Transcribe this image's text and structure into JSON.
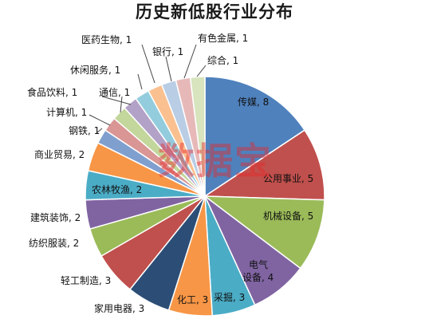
{
  "chart_data": {
    "type": "pie",
    "title": "历史新低股行业分布",
    "slices": [
      {
        "label": "传媒",
        "value": 8,
        "color": "#4F81BD"
      },
      {
        "label": "公用事业",
        "value": 5,
        "color": "#C0504D"
      },
      {
        "label": "机械设备",
        "value": 5,
        "color": "#9BBB59"
      },
      {
        "label": "电气设备",
        "value": 4,
        "color": "#8064A2"
      },
      {
        "label": "采掘",
        "value": 3,
        "color": "#4BACC6"
      },
      {
        "label": "化工",
        "value": 3,
        "color": "#F79646"
      },
      {
        "label": "家用电器",
        "value": 3,
        "color": "#2C4D75"
      },
      {
        "label": "轻工制造",
        "value": 3,
        "color": "#C0504D"
      },
      {
        "label": "纺织服装",
        "value": 2,
        "color": "#9BBB59"
      },
      {
        "label": "建筑装饰",
        "value": 2,
        "color": "#8064A2"
      },
      {
        "label": "农林牧渔",
        "value": 2,
        "color": "#4BACC6"
      },
      {
        "label": "商业贸易",
        "value": 2,
        "color": "#F79646"
      },
      {
        "label": "钢铁",
        "value": 1,
        "color": "#7F9FCF"
      },
      {
        "label": "计算机",
        "value": 1,
        "color": "#D99694"
      },
      {
        "label": "通信",
        "value": 1,
        "color": "#C3D69B"
      },
      {
        "label": "食品饮料",
        "value": 1,
        "color": "#B3A2C7"
      },
      {
        "label": "休闲服务",
        "value": 1,
        "color": "#93CDDD"
      },
      {
        "label": "医药生物",
        "value": 1,
        "color": "#FAC090"
      },
      {
        "label": "银行",
        "value": 1,
        "color": "#B9CDE5"
      },
      {
        "label": "有色金属",
        "value": 1,
        "color": "#E6B9B8"
      },
      {
        "label": "综合",
        "value": 1,
        "color": "#D7E4BD"
      }
    ],
    "legend": "none",
    "label_format": "{label}, {value}"
  },
  "watermark": "数据宝"
}
